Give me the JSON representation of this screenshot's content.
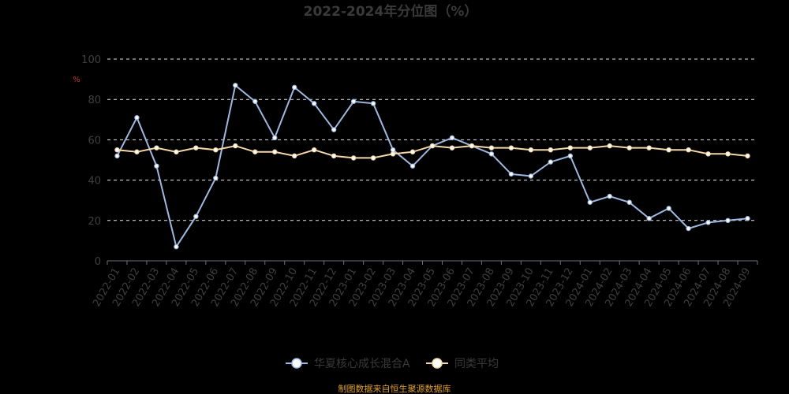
{
  "chart_data": {
    "type": "line",
    "title": "2022-2024年分位图（%）",
    "ylabel": "%",
    "ylim": [
      0,
      100
    ],
    "yticks": [
      0,
      20,
      40,
      60,
      80,
      100
    ],
    "grid": true,
    "legend_position": "bottom",
    "categories": [
      "2022-01",
      "2022-02",
      "2022-03",
      "2022-04",
      "2022-05",
      "2022-06",
      "2022-07",
      "2022-08",
      "2022-09",
      "2022-10",
      "2022-11",
      "2022-12",
      "2023-01",
      "2023-02",
      "2023-03",
      "2023-04",
      "2023-05",
      "2023-06",
      "2023-07",
      "2023-08",
      "2023-09",
      "2023-10",
      "2023-11",
      "2023-12",
      "2024-01",
      "2024-02",
      "2024-03",
      "2024-04",
      "2024-05",
      "2024-06",
      "2024-07",
      "2024-08",
      "2024-09"
    ],
    "series": [
      {
        "name": "华夏核心成长混合A",
        "color": "#9fb8e0",
        "values": [
          52,
          71,
          47,
          7,
          22,
          41,
          87,
          79,
          61,
          86,
          78,
          65,
          79,
          78,
          55,
          47,
          57,
          61,
          57,
          53,
          43,
          42,
          49,
          52,
          29,
          32,
          29,
          21,
          26,
          16,
          19,
          20,
          21
        ]
      },
      {
        "name": "同类平均",
        "color": "#f5d8a8",
        "values": [
          55,
          54,
          56,
          54,
          56,
          55,
          57,
          54,
          54,
          52,
          55,
          52,
          51,
          51,
          53,
          54,
          57,
          56,
          57,
          56,
          56,
          55,
          55,
          56,
          56,
          57,
          56,
          56,
          55,
          55,
          53,
          53,
          52
        ]
      }
    ]
  },
  "source_note": "制图数据来自恒生聚源数据库"
}
